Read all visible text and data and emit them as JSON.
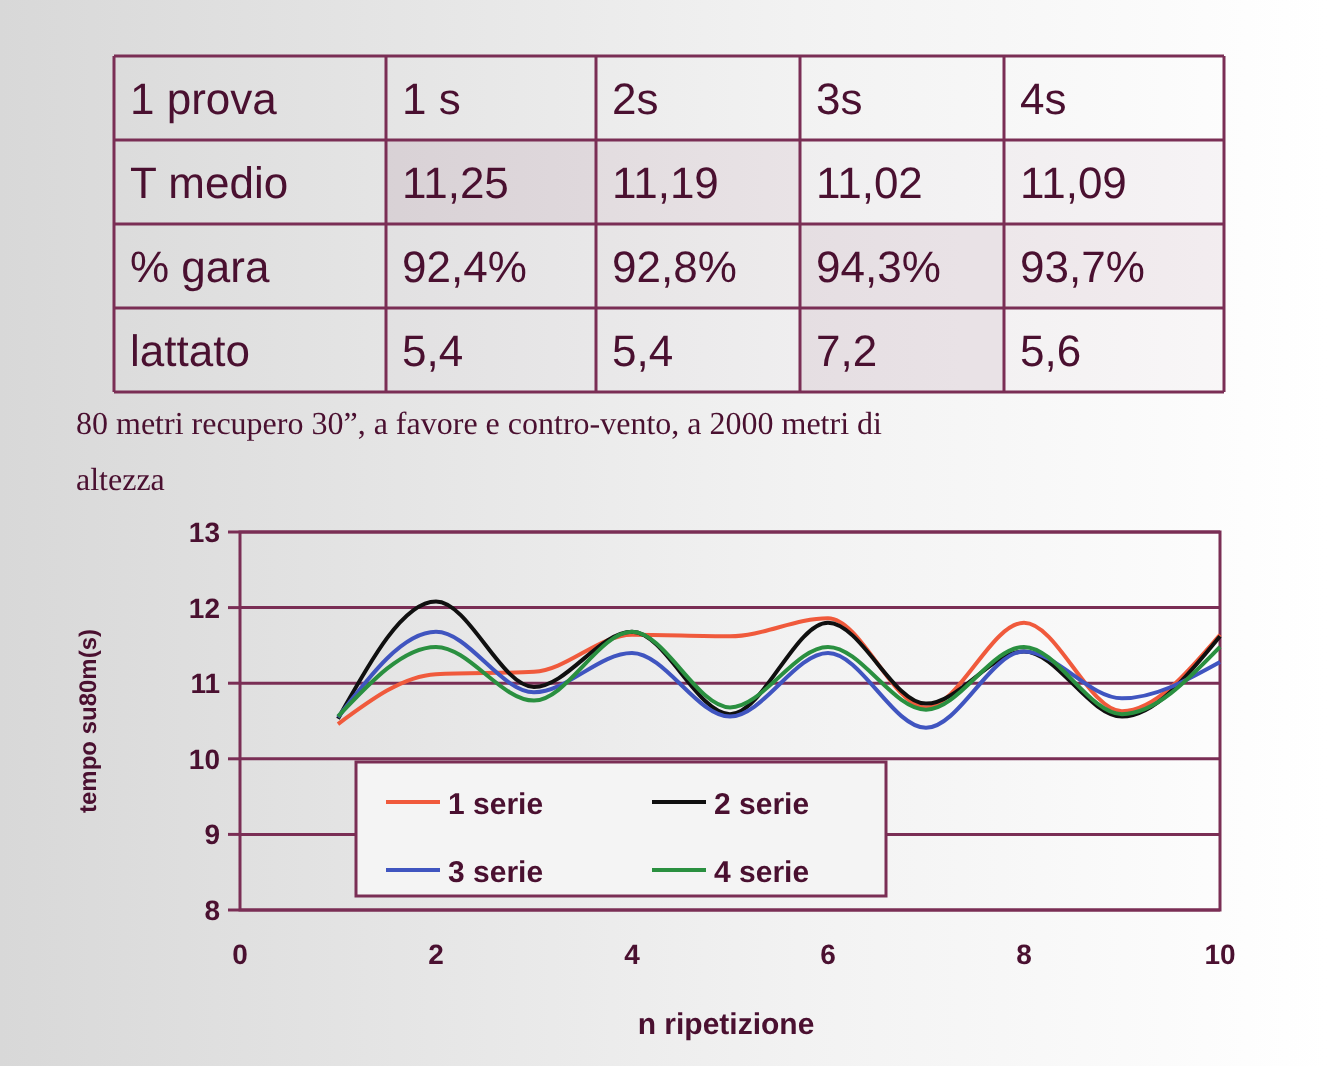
{
  "chart_data": [
    {
      "type": "heatmap",
      "legend_title": "1 prova",
      "categories": [
        "1 s",
        "2s",
        "3s",
        "4s"
      ],
      "y_categories": [
        "T medio",
        "% gara",
        "lattato"
      ],
      "cells": [
        [
          11.25,
          11.19,
          11.02,
          11.09
        ],
        [
          92.4,
          92.8,
          94.3,
          93.7
        ],
        [
          5.4,
          5.4,
          7.2,
          5.6
        ]
      ],
      "cell_labels": [
        [
          "11,25",
          "11,19",
          "11,02",
          "11,09"
        ],
        [
          "92,4%",
          "92,8%",
          "94,3%",
          "93,7%"
        ],
        [
          "5,4",
          "5,4",
          "7,2",
          "5,6"
        ]
      ]
    },
    {
      "type": "line",
      "title": "80 metri recupero 30”, a favore e contro-vento, a 2000 metri di altezza",
      "xlabel": "n ripetizione",
      "ylabel": "tempo su80m(s)",
      "x": [
        1,
        2,
        3,
        4,
        5,
        6,
        7,
        8,
        9,
        10
      ],
      "xlim": [
        0,
        10
      ],
      "xticks": [
        0,
        2,
        4,
        6,
        8,
        10
      ],
      "ylim": [
        8,
        13
      ],
      "yticks": [
        8,
        9,
        10,
        11,
        12,
        13
      ],
      "grid": "y",
      "legend": "bottom left",
      "marker": "none",
      "line_style": "solid",
      "series": [
        {
          "name": "1 serie",
          "color": "#f05a3c",
          "values": [
            10.46,
            11.12,
            11.15,
            11.64,
            11.62,
            11.86,
            10.68,
            11.8,
            10.63,
            11.64
          ]
        },
        {
          "name": "2 serie",
          "color": "#101010",
          "values": [
            10.53,
            12.08,
            10.95,
            11.68,
            10.59,
            11.8,
            10.73,
            11.42,
            10.56,
            11.62
          ]
        },
        {
          "name": "3 serie",
          "color": "#4055c0",
          "values": [
            10.55,
            11.68,
            10.88,
            11.4,
            10.56,
            11.4,
            10.41,
            11.42,
            10.8,
            11.28
          ]
        },
        {
          "name": "4 serie",
          "color": "#2a9040",
          "values": [
            10.56,
            11.48,
            10.77,
            11.68,
            10.68,
            11.48,
            10.65,
            11.48,
            10.59,
            11.48
          ]
        }
      ]
    }
  ]
}
